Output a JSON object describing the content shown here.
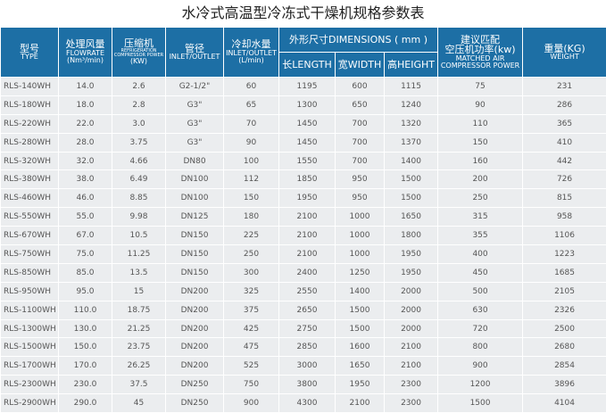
{
  "title": "水冷式高温型冷冻式干燥机规格参数表",
  "table": {
    "header": {
      "type": [
        "型号",
        "TYPE"
      ],
      "flowrate": [
        "处理风量",
        "FLOWRATE",
        "(Nm³/min)"
      ],
      "compressor": [
        "压缩机",
        "REFRIGERATION COMPRESSOR POWER",
        "(KW)"
      ],
      "pipe": [
        "管径",
        "INLET/OUTLET"
      ],
      "water": [
        "冷却水量",
        "INLET/OUTLET",
        "(L/min)"
      ],
      "dimensions": [
        "外形尺寸DIMENSIONS ( mm )"
      ],
      "length": [
        "长LENGTH"
      ],
      "width": [
        "宽WIDTH"
      ],
      "height": [
        "高HEIGHT"
      ],
      "matched": [
        "建议匹配",
        "空压机功率(kw)",
        "MATCHED AIR",
        "COMPRESSOR POWER"
      ],
      "weight": [
        "重量(KG)",
        "WEIGHT"
      ]
    },
    "rows": [
      [
        "RLS-140WH",
        "14.0",
        "2.6",
        "G2-1/2\"",
        "60",
        "1195",
        "600",
        "1115",
        "75",
        "231"
      ],
      [
        "RLS-180WH",
        "18.0",
        "2.8",
        "G3\"",
        "65",
        "1300",
        "650",
        "1240",
        "90",
        "286"
      ],
      [
        "RLS-220WH",
        "22.0",
        "3.0",
        "G3\"",
        "70",
        "1450",
        "700",
        "1320",
        "110",
        "365"
      ],
      [
        "RLS-280WH",
        "28.0",
        "3.75",
        "G3\"",
        "90",
        "1450",
        "700",
        "1370",
        "150",
        "410"
      ],
      [
        "RLS-320WH",
        "32.0",
        "4.66",
        "DN80",
        "100",
        "1550",
        "700",
        "1400",
        "160",
        "442"
      ],
      [
        "RLS-380WH",
        "38.0",
        "6.49",
        "DN100",
        "112",
        "1850",
        "950",
        "1500",
        "200",
        "726"
      ],
      [
        "RLS-460WH",
        "46.0",
        "8.85",
        "DN100",
        "150",
        "1950",
        "950",
        "1500",
        "250",
        "815"
      ],
      [
        "RLS-550WH",
        "55.0",
        "9.98",
        "DN125",
        "180",
        "2100",
        "1000",
        "1650",
        "315",
        "958"
      ],
      [
        "RLS-670WH",
        "67.0",
        "10.5",
        "DN150",
        "225",
        "2100",
        "1000",
        "1800",
        "355",
        "1106"
      ],
      [
        "RLS-750WH",
        "75.0",
        "11.25",
        "DN150",
        "250",
        "2100",
        "1000",
        "1950",
        "400",
        "1223"
      ],
      [
        "RLS-850WH",
        "85.0",
        "13.5",
        "DN150",
        "300",
        "2400",
        "1250",
        "1950",
        "450",
        "1685"
      ],
      [
        "RLS-950WH",
        "95.0",
        "15",
        "DN200",
        "325",
        "2550",
        "1400",
        "2000",
        "500",
        "2105"
      ],
      [
        "RLS-1100WH",
        "110.0",
        "18.75",
        "DN200",
        "375",
        "2650",
        "1500",
        "2000",
        "630",
        "2326"
      ],
      [
        "RLS-1300WH",
        "130.0",
        "21.25",
        "DN200",
        "425",
        "2750",
        "1500",
        "2000",
        "720",
        "2500"
      ],
      [
        "RLS-1500WH",
        "150.0",
        "23.75",
        "DN200",
        "475",
        "2850",
        "1600",
        "2100",
        "800",
        "2680"
      ],
      [
        "RLS-1700WH",
        "170.0",
        "26.25",
        "DN200",
        "525",
        "3000",
        "1650",
        "2100",
        "900",
        "2854"
      ],
      [
        "RLS-2300WH",
        "230.0",
        "37.5",
        "DN250",
        "750",
        "3800",
        "1950",
        "2300",
        "1200",
        "3896"
      ],
      [
        "RLS-2900WH",
        "290.0",
        "45",
        "DN250",
        "900",
        "4300",
        "2100",
        "2300",
        "1500",
        "4104"
      ]
    ]
  }
}
